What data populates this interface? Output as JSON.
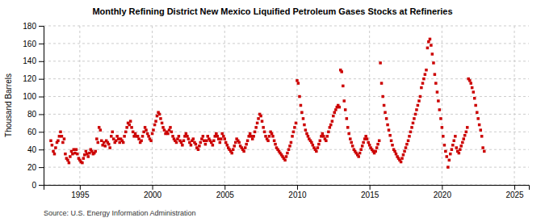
{
  "chart_data": {
    "type": "scatter",
    "title": "Monthly Refining District New Mexico Liquified Petroleum Gases Stocks at Refineries",
    "ylabel": "Thousand Barrels",
    "source": "Source: U.S. Energy Information Administration",
    "color": "#cc0000",
    "marker": "square",
    "grid": true,
    "xlim": [
      1992.5,
      2026
    ],
    "ylim": [
      0,
      180
    ],
    "xticks": [
      1995,
      2000,
      2005,
      2010,
      2015,
      2020,
      2025
    ],
    "yticks": [
      0,
      20,
      40,
      60,
      80,
      100,
      120,
      140,
      160,
      180
    ],
    "x": [
      1993.0,
      1993.08,
      1993.17,
      1993.25,
      1993.33,
      1993.42,
      1993.5,
      1993.58,
      1993.67,
      1993.75,
      1993.83,
      1993.92,
      1994.0,
      1994.08,
      1994.17,
      1994.25,
      1994.33,
      1994.42,
      1994.5,
      1994.58,
      1994.67,
      1994.75,
      1994.83,
      1994.92,
      1995.0,
      1995.08,
      1995.17,
      1995.25,
      1995.33,
      1995.42,
      1995.5,
      1995.58,
      1995.67,
      1995.75,
      1995.83,
      1995.92,
      1996.0,
      1996.08,
      1996.17,
      1996.25,
      1996.33,
      1996.42,
      1996.5,
      1996.58,
      1996.67,
      1996.75,
      1996.83,
      1996.92,
      1997.0,
      1997.08,
      1997.17,
      1997.25,
      1997.33,
      1997.42,
      1997.5,
      1997.58,
      1997.67,
      1997.75,
      1997.83,
      1997.92,
      1998.0,
      1998.08,
      1998.17,
      1998.25,
      1998.33,
      1998.42,
      1998.5,
      1998.58,
      1998.67,
      1998.75,
      1998.83,
      1998.92,
      1999.0,
      1999.08,
      1999.17,
      1999.25,
      1999.33,
      1999.42,
      1999.5,
      1999.58,
      1999.67,
      1999.75,
      1999.83,
      1999.92,
      2000.0,
      2000.08,
      2000.17,
      2000.25,
      2000.33,
      2000.42,
      2000.5,
      2000.58,
      2000.67,
      2000.75,
      2000.83,
      2000.92,
      2001.0,
      2001.08,
      2001.17,
      2001.25,
      2001.33,
      2001.42,
      2001.5,
      2001.58,
      2001.67,
      2001.75,
      2001.83,
      2001.92,
      2002.0,
      2002.08,
      2002.17,
      2002.25,
      2002.33,
      2002.42,
      2002.5,
      2002.58,
      2002.67,
      2002.75,
      2002.83,
      2002.92,
      2003.0,
      2003.08,
      2003.17,
      2003.25,
      2003.33,
      2003.42,
      2003.5,
      2003.58,
      2003.67,
      2003.75,
      2003.83,
      2003.92,
      2004.0,
      2004.08,
      2004.17,
      2004.25,
      2004.33,
      2004.42,
      2004.5,
      2004.58,
      2004.67,
      2004.75,
      2004.83,
      2004.92,
      2005.0,
      2005.08,
      2005.17,
      2005.25,
      2005.33,
      2005.42,
      2005.5,
      2005.58,
      2005.67,
      2005.75,
      2005.83,
      2005.92,
      2006.0,
      2006.08,
      2006.17,
      2006.25,
      2006.33,
      2006.42,
      2006.5,
      2006.58,
      2006.67,
      2006.75,
      2006.83,
      2006.92,
      2007.0,
      2007.08,
      2007.17,
      2007.25,
      2007.33,
      2007.42,
      2007.5,
      2007.58,
      2007.67,
      2007.75,
      2007.83,
      2007.92,
      2008.0,
      2008.08,
      2008.17,
      2008.25,
      2008.33,
      2008.42,
      2008.5,
      2008.58,
      2008.67,
      2008.75,
      2008.83,
      2008.92,
      2009.0,
      2009.08,
      2009.17,
      2009.25,
      2009.33,
      2009.42,
      2009.5,
      2009.58,
      2009.67,
      2009.75,
      2009.83,
      2009.92,
      2010.0,
      2010.08,
      2010.17,
      2010.25,
      2010.33,
      2010.42,
      2010.5,
      2010.58,
      2010.67,
      2010.75,
      2010.83,
      2010.92,
      2011.0,
      2011.08,
      2011.17,
      2011.25,
      2011.33,
      2011.42,
      2011.5,
      2011.58,
      2011.67,
      2011.75,
      2011.83,
      2011.92,
      2012.0,
      2012.08,
      2012.17,
      2012.25,
      2012.33,
      2012.42,
      2012.5,
      2012.58,
      2012.67,
      2012.75,
      2012.83,
      2012.92,
      2013.0,
      2013.08,
      2013.17,
      2013.25,
      2013.33,
      2013.42,
      2013.5,
      2013.58,
      2013.67,
      2013.75,
      2013.83,
      2013.92,
      2014.0,
      2014.08,
      2014.17,
      2014.25,
      2014.33,
      2014.42,
      2014.5,
      2014.58,
      2014.67,
      2014.75,
      2014.83,
      2014.92,
      2015.0,
      2015.08,
      2015.17,
      2015.25,
      2015.33,
      2015.42,
      2015.5,
      2015.58,
      2015.67,
      2015.75,
      2015.83,
      2015.92,
      2016.0,
      2016.08,
      2016.17,
      2016.25,
      2016.33,
      2016.42,
      2016.5,
      2016.58,
      2016.67,
      2016.75,
      2016.83,
      2016.92,
      2017.0,
      2017.08,
      2017.17,
      2017.25,
      2017.33,
      2017.42,
      2017.5,
      2017.58,
      2017.67,
      2017.75,
      2017.83,
      2017.92,
      2018.0,
      2018.08,
      2018.17,
      2018.25,
      2018.33,
      2018.42,
      2018.5,
      2018.58,
      2018.67,
      2018.75,
      2018.83,
      2018.92,
      2019.0,
      2019.08,
      2019.17,
      2019.25,
      2019.33,
      2019.42,
      2019.5,
      2019.58,
      2019.67,
      2019.75,
      2019.83,
      2019.92,
      2020.0,
      2020.08,
      2020.17,
      2020.25,
      2020.33,
      2020.42,
      2020.5,
      2020.58,
      2020.67,
      2020.75,
      2020.83,
      2020.92,
      2021.0,
      2021.08,
      2021.17,
      2021.25,
      2021.33,
      2021.42,
      2021.5,
      2021.58,
      2021.67,
      2021.75,
      2021.83,
      2021.92,
      2022.0,
      2022.08,
      2022.17,
      2022.25,
      2022.33,
      2022.42,
      2022.5,
      2022.58,
      2022.67,
      2022.75,
      2022.83,
      2022.92
    ],
    "values": [
      50,
      45,
      38,
      35,
      42,
      48,
      50,
      55,
      60,
      55,
      48,
      52,
      35,
      30,
      28,
      25,
      32,
      38,
      35,
      40,
      36,
      40,
      35,
      30,
      28,
      26,
      25,
      30,
      34,
      38,
      35,
      32,
      36,
      40,
      38,
      35,
      36,
      38,
      52,
      48,
      65,
      62,
      50,
      45,
      48,
      44,
      50,
      48,
      46,
      42,
      55,
      60,
      52,
      48,
      50,
      55,
      52,
      48,
      52,
      50,
      48,
      55,
      60,
      65,
      70,
      68,
      72,
      65,
      60,
      55,
      58,
      55,
      55,
      52,
      48,
      50,
      55,
      60,
      65,
      62,
      58,
      55,
      52,
      50,
      58,
      62,
      68,
      72,
      78,
      82,
      80,
      75,
      70,
      65,
      62,
      58,
      60,
      58,
      62,
      65,
      60,
      55,
      52,
      50,
      48,
      52,
      55,
      50,
      48,
      45,
      50,
      55,
      58,
      55,
      52,
      48,
      45,
      50,
      52,
      48,
      46,
      42,
      40,
      44,
      48,
      52,
      55,
      50,
      46,
      50,
      55,
      52,
      50,
      48,
      45,
      50,
      55,
      58,
      55,
      52,
      48,
      52,
      58,
      55,
      52,
      48,
      45,
      42,
      40,
      38,
      36,
      40,
      44,
      48,
      52,
      50,
      48,
      44,
      42,
      40,
      38,
      42,
      46,
      50,
      55,
      58,
      55,
      52,
      55,
      60,
      65,
      70,
      75,
      80,
      78,
      72,
      65,
      60,
      55,
      52,
      50,
      55,
      60,
      58,
      55,
      50,
      46,
      42,
      40,
      38,
      36,
      34,
      32,
      30,
      28,
      32,
      36,
      40,
      44,
      48,
      55,
      60,
      65,
      70,
      118,
      115,
      100,
      90,
      82,
      75,
      68,
      62,
      58,
      55,
      52,
      50,
      48,
      45,
      42,
      40,
      38,
      42,
      46,
      50,
      55,
      58,
      55,
      52,
      50,
      55,
      60,
      65,
      68,
      72,
      78,
      82,
      85,
      88,
      90,
      88,
      130,
      128,
      112,
      95,
      85,
      75,
      65,
      58,
      52,
      48,
      44,
      40,
      38,
      36,
      34,
      32,
      36,
      40,
      44,
      48,
      52,
      55,
      52,
      48,
      45,
      42,
      40,
      38,
      36,
      38,
      42,
      46,
      50,
      138,
      115,
      100,
      90,
      82,
      75,
      68,
      62,
      56,
      50,
      45,
      40,
      38,
      35,
      32,
      30,
      28,
      26,
      30,
      34,
      38,
      42,
      46,
      50,
      55,
      60,
      65,
      70,
      75,
      80,
      85,
      90,
      95,
      100,
      110,
      115,
      120,
      125,
      130,
      155,
      162,
      165,
      158,
      148,
      138,
      125,
      115,
      105,
      95,
      85,
      75,
      65,
      55,
      45,
      38,
      32,
      20,
      28,
      35,
      40,
      45,
      50,
      55,
      42,
      38,
      36,
      40,
      44,
      48,
      52,
      56,
      60,
      65,
      120,
      118,
      115,
      110,
      105,
      98,
      90,
      82,
      75,
      68,
      62,
      55,
      42,
      38
    ]
  }
}
